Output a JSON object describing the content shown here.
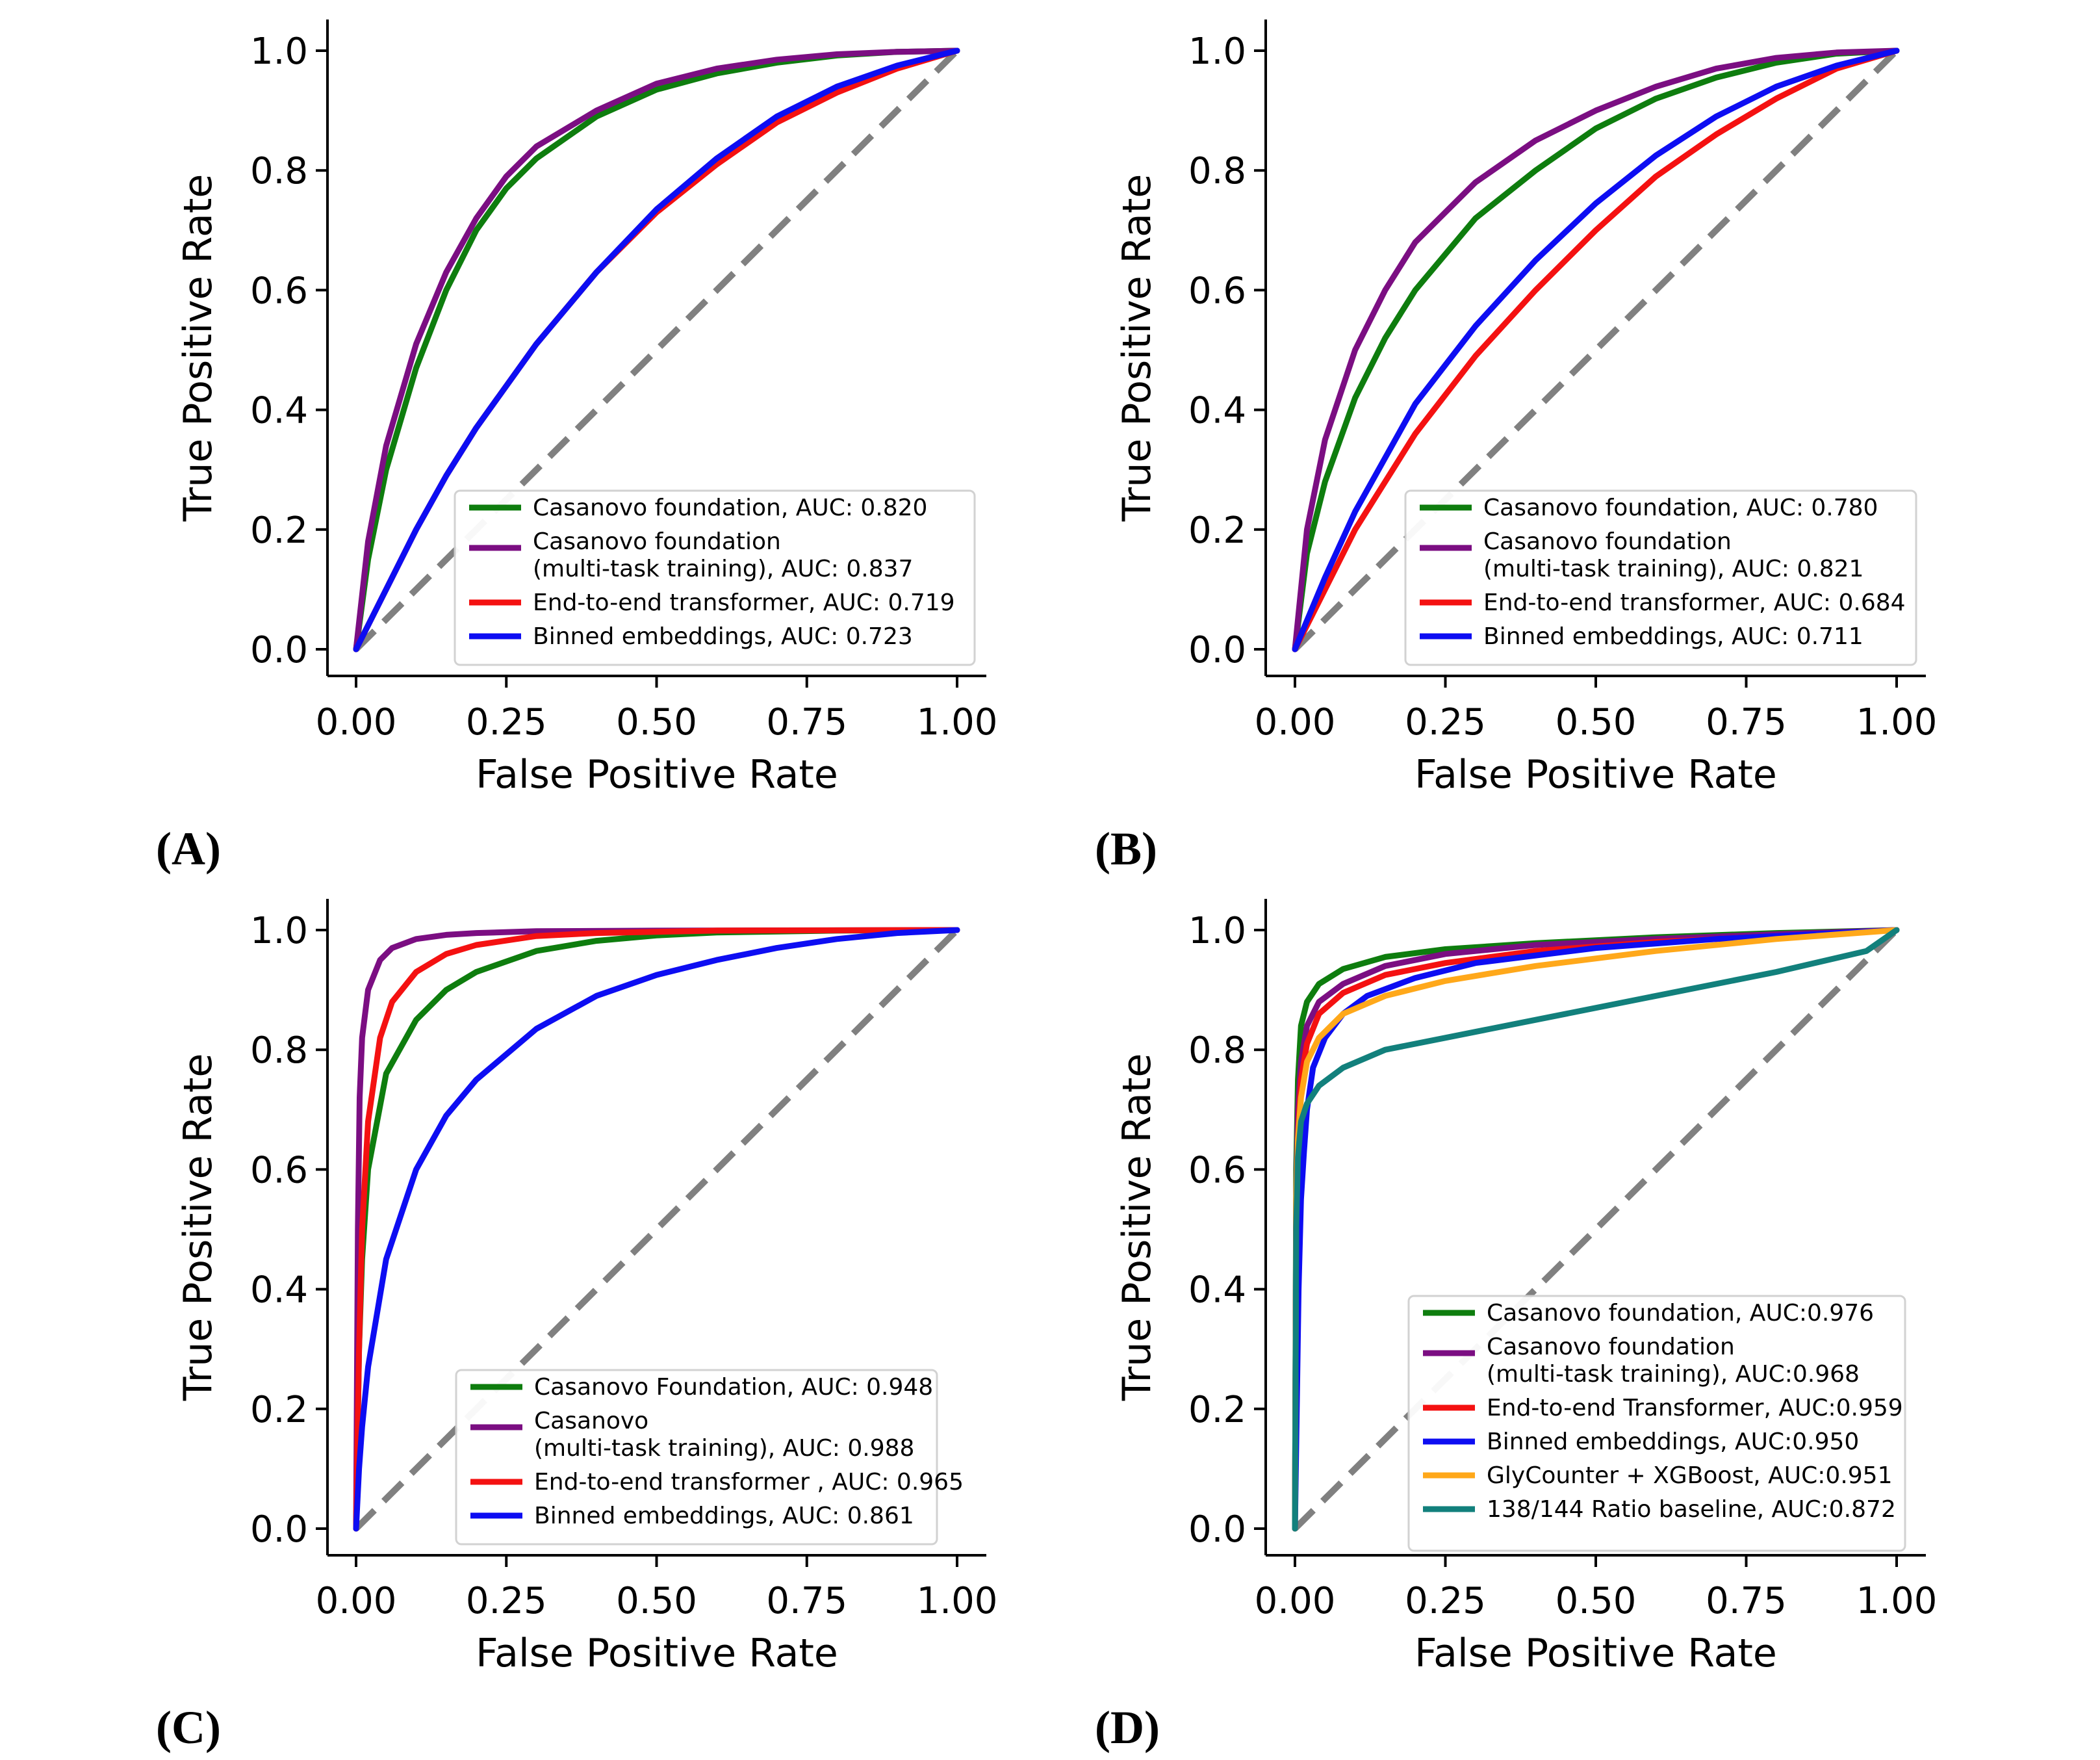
{
  "colors": {
    "green": "#0e7d0e",
    "purple": "#7b0e82",
    "red": "#f41111",
    "blue": "#0d0df2",
    "orange": "#ffa81a",
    "teal": "#12807c",
    "diagonal": "#808080"
  },
  "chart_data": [
    {
      "type": "line",
      "panel_label": "(A)",
      "xlabel": "False Positive Rate",
      "ylabel": "True Positive Rate",
      "xlim": [
        0,
        1
      ],
      "ylim": [
        0,
        1
      ],
      "xticks": [
        "0.00",
        "0.25",
        "0.50",
        "0.75",
        "1.00"
      ],
      "yticks": [
        "0.0",
        "0.2",
        "0.4",
        "0.6",
        "0.8",
        "1.0"
      ],
      "diagonal": true,
      "legend_position": "lower-right",
      "series": [
        {
          "name": "Casanovo foundation, AUC: 0.820",
          "color": "green",
          "x": [
            0,
            0.02,
            0.05,
            0.1,
            0.15,
            0.2,
            0.25,
            0.3,
            0.4,
            0.5,
            0.6,
            0.7,
            0.8,
            0.9,
            1.0
          ],
          "y": [
            0,
            0.15,
            0.3,
            0.47,
            0.6,
            0.7,
            0.77,
            0.82,
            0.89,
            0.935,
            0.962,
            0.98,
            0.992,
            0.998,
            1.0
          ]
        },
        {
          "name": "Casanovo foundation\n(multi-task training), AUC: 0.837",
          "color": "purple",
          "x": [
            0,
            0.02,
            0.05,
            0.1,
            0.15,
            0.2,
            0.25,
            0.3,
            0.4,
            0.5,
            0.6,
            0.7,
            0.8,
            0.9,
            1.0
          ],
          "y": [
            0,
            0.18,
            0.34,
            0.51,
            0.63,
            0.72,
            0.79,
            0.84,
            0.9,
            0.945,
            0.97,
            0.985,
            0.994,
            0.998,
            1.0
          ]
        },
        {
          "name": "End-to-end transformer, AUC: 0.719",
          "color": "red",
          "x": [
            0,
            0.05,
            0.1,
            0.15,
            0.2,
            0.3,
            0.4,
            0.5,
            0.6,
            0.7,
            0.8,
            0.9,
            1.0
          ],
          "y": [
            0,
            0.1,
            0.2,
            0.29,
            0.37,
            0.51,
            0.63,
            0.73,
            0.81,
            0.88,
            0.93,
            0.97,
            1.0
          ]
        },
        {
          "name": "Binned embeddings, AUC: 0.723",
          "color": "blue",
          "x": [
            0,
            0.05,
            0.1,
            0.15,
            0.2,
            0.3,
            0.4,
            0.5,
            0.6,
            0.7,
            0.8,
            0.9,
            1.0
          ],
          "y": [
            0,
            0.1,
            0.2,
            0.29,
            0.37,
            0.51,
            0.63,
            0.735,
            0.82,
            0.89,
            0.94,
            0.975,
            1.0
          ]
        }
      ]
    },
    {
      "type": "line",
      "panel_label": "(B)",
      "xlabel": "False Positive Rate",
      "ylabel": "True Positive Rate",
      "xlim": [
        0,
        1
      ],
      "ylim": [
        0,
        1
      ],
      "xticks": [
        "0.00",
        "0.25",
        "0.50",
        "0.75",
        "1.00"
      ],
      "yticks": [
        "0.0",
        "0.2",
        "0.4",
        "0.6",
        "0.8",
        "1.0"
      ],
      "diagonal": true,
      "legend_position": "lower-right",
      "series": [
        {
          "name": "Casanovo foundation, AUC: 0.780",
          "color": "green",
          "x": [
            0,
            0.02,
            0.05,
            0.1,
            0.15,
            0.2,
            0.3,
            0.4,
            0.5,
            0.6,
            0.7,
            0.8,
            0.9,
            1.0
          ],
          "y": [
            0,
            0.16,
            0.28,
            0.42,
            0.52,
            0.6,
            0.72,
            0.8,
            0.87,
            0.92,
            0.955,
            0.98,
            0.995,
            1.0
          ]
        },
        {
          "name": "Casanovo foundation\n(multi-task training), AUC: 0.821",
          "color": "purple",
          "x": [
            0,
            0.02,
            0.05,
            0.1,
            0.15,
            0.2,
            0.3,
            0.4,
            0.5,
            0.6,
            0.7,
            0.8,
            0.9,
            1.0
          ],
          "y": [
            0,
            0.2,
            0.35,
            0.5,
            0.6,
            0.68,
            0.78,
            0.85,
            0.9,
            0.94,
            0.97,
            0.988,
            0.997,
            1.0
          ]
        },
        {
          "name": "End-to-end transformer, AUC: 0.684",
          "color": "red",
          "x": [
            0,
            0.05,
            0.1,
            0.15,
            0.2,
            0.3,
            0.4,
            0.5,
            0.6,
            0.7,
            0.8,
            0.9,
            1.0
          ],
          "y": [
            0,
            0.1,
            0.2,
            0.28,
            0.36,
            0.49,
            0.6,
            0.7,
            0.79,
            0.86,
            0.92,
            0.97,
            1.0
          ]
        },
        {
          "name": "Binned embeddings, AUC: 0.711",
          "color": "blue",
          "x": [
            0,
            0.05,
            0.1,
            0.15,
            0.2,
            0.3,
            0.4,
            0.5,
            0.6,
            0.7,
            0.8,
            0.9,
            1.0
          ],
          "y": [
            0,
            0.12,
            0.23,
            0.32,
            0.41,
            0.54,
            0.65,
            0.745,
            0.825,
            0.89,
            0.94,
            0.975,
            1.0
          ]
        }
      ]
    },
    {
      "type": "line",
      "panel_label": "(C)",
      "xlabel": "False Positive Rate",
      "ylabel": "True Positive Rate",
      "xlim": [
        0,
        1
      ],
      "ylim": [
        0,
        1
      ],
      "xticks": [
        "0.00",
        "0.25",
        "0.50",
        "0.75",
        "1.00"
      ],
      "yticks": [
        "0.0",
        "0.2",
        "0.4",
        "0.6",
        "0.8",
        "1.0"
      ],
      "diagonal": true,
      "legend_position": "lower-right",
      "series": [
        {
          "name": "Casanovo Foundation, AUC: 0.948",
          "color": "green",
          "x": [
            0,
            0.005,
            0.01,
            0.02,
            0.05,
            0.1,
            0.15,
            0.2,
            0.3,
            0.4,
            0.5,
            0.6,
            0.8,
            1.0
          ],
          "y": [
            0,
            0.3,
            0.45,
            0.6,
            0.76,
            0.85,
            0.9,
            0.93,
            0.965,
            0.982,
            0.991,
            0.996,
            0.999,
            1.0
          ]
        },
        {
          "name": "Casanovo\n(multi-task training), AUC: 0.988",
          "color": "purple",
          "x": [
            0,
            0.003,
            0.006,
            0.01,
            0.02,
            0.04,
            0.06,
            0.1,
            0.15,
            0.2,
            0.3,
            0.5,
            1.0
          ],
          "y": [
            0,
            0.5,
            0.72,
            0.82,
            0.9,
            0.95,
            0.97,
            0.985,
            0.992,
            0.995,
            0.998,
            0.999,
            1.0
          ]
        },
        {
          "name": "End-to-end transformer , AUC: 0.965",
          "color": "red",
          "x": [
            0,
            0.005,
            0.01,
            0.02,
            0.04,
            0.06,
            0.1,
            0.15,
            0.2,
            0.3,
            0.4,
            0.6,
            1.0
          ],
          "y": [
            0,
            0.3,
            0.5,
            0.68,
            0.82,
            0.88,
            0.93,
            0.96,
            0.975,
            0.99,
            0.995,
            0.999,
            1.0
          ]
        },
        {
          "name": "Binned embeddings, AUC: 0.861",
          "color": "blue",
          "x": [
            0,
            0.005,
            0.01,
            0.02,
            0.05,
            0.1,
            0.15,
            0.2,
            0.3,
            0.4,
            0.5,
            0.6,
            0.7,
            0.8,
            0.9,
            1.0
          ],
          "y": [
            0,
            0.1,
            0.17,
            0.27,
            0.45,
            0.6,
            0.69,
            0.75,
            0.835,
            0.89,
            0.925,
            0.95,
            0.97,
            0.985,
            0.995,
            1.0
          ]
        }
      ]
    },
    {
      "type": "line",
      "panel_label": "(D)",
      "xlabel": "False Positive Rate",
      "ylabel": "True Positive Rate",
      "xlim": [
        0,
        1
      ],
      "ylim": [
        0,
        1
      ],
      "xticks": [
        "0.00",
        "0.25",
        "0.50",
        "0.75",
        "1.00"
      ],
      "yticks": [
        "0.0",
        "0.2",
        "0.4",
        "0.6",
        "0.8",
        "1.0"
      ],
      "diagonal": true,
      "legend_position": "lower-right",
      "series": [
        {
          "name": "Casanovo foundation, AUC:0.976",
          "color": "green",
          "x": [
            0,
            0.002,
            0.005,
            0.01,
            0.02,
            0.04,
            0.08,
            0.15,
            0.25,
            0.4,
            0.6,
            0.8,
            1.0
          ],
          "y": [
            0,
            0.6,
            0.75,
            0.84,
            0.88,
            0.91,
            0.935,
            0.955,
            0.968,
            0.978,
            0.988,
            0.995,
            1.0
          ]
        },
        {
          "name": "Casanovo foundation\n(multi-task training), AUC:0.968",
          "color": "purple",
          "x": [
            0,
            0.002,
            0.005,
            0.01,
            0.02,
            0.04,
            0.08,
            0.15,
            0.25,
            0.4,
            0.6,
            0.8,
            1.0
          ],
          "y": [
            0,
            0.55,
            0.7,
            0.78,
            0.84,
            0.88,
            0.91,
            0.94,
            0.96,
            0.975,
            0.985,
            0.993,
            1.0
          ]
        },
        {
          "name": "End-to-end Transformer, AUC:0.959",
          "color": "red",
          "x": [
            0,
            0.002,
            0.005,
            0.01,
            0.02,
            0.04,
            0.08,
            0.15,
            0.25,
            0.4,
            0.6,
            0.8,
            1.0
          ],
          "y": [
            0,
            0.5,
            0.65,
            0.75,
            0.81,
            0.86,
            0.895,
            0.925,
            0.945,
            0.965,
            0.98,
            0.99,
            1.0
          ]
        },
        {
          "name": "Binned embeddings, AUC:0.950",
          "color": "blue",
          "x": [
            0,
            0.003,
            0.006,
            0.01,
            0.015,
            0.02,
            0.03,
            0.05,
            0.08,
            0.12,
            0.2,
            0.3,
            0.5,
            0.7,
            0.9,
            1.0
          ],
          "y": [
            0,
            0.2,
            0.4,
            0.55,
            0.63,
            0.7,
            0.77,
            0.82,
            0.86,
            0.89,
            0.92,
            0.945,
            0.97,
            0.985,
            0.995,
            1.0
          ]
        },
        {
          "name": "GlyCounter + XGBoost, AUC:0.951",
          "color": "orange",
          "x": [
            0,
            0.002,
            0.005,
            0.01,
            0.02,
            0.04,
            0.08,
            0.15,
            0.25,
            0.4,
            0.6,
            0.8,
            1.0
          ],
          "y": [
            0,
            0.55,
            0.65,
            0.72,
            0.78,
            0.82,
            0.86,
            0.89,
            0.915,
            0.94,
            0.965,
            0.985,
            1.0
          ]
        },
        {
          "name": "138/144 Ratio baseline, AUC:0.872",
          "color": "teal",
          "x": [
            0,
            0.002,
            0.005,
            0.01,
            0.02,
            0.04,
            0.08,
            0.15,
            0.25,
            0.4,
            0.6,
            0.8,
            0.95,
            1.0
          ],
          "y": [
            0,
            0.5,
            0.62,
            0.68,
            0.71,
            0.74,
            0.77,
            0.8,
            0.82,
            0.85,
            0.89,
            0.93,
            0.965,
            1.0
          ]
        }
      ]
    }
  ]
}
